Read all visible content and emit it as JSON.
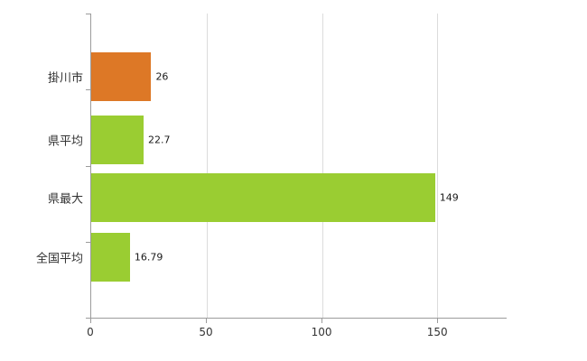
{
  "chart_data": {
    "type": "bar",
    "orientation": "horizontal",
    "title": "",
    "xlabel": "",
    "ylabel": "",
    "categories": [
      "掛川市",
      "県平均",
      "県最大",
      "全国平均"
    ],
    "values": [
      26,
      22.7,
      149,
      16.79
    ],
    "value_labels": [
      "26",
      "22.7",
      "149",
      "16.79"
    ],
    "bar_colors": [
      "#dd7826",
      "#9acd32",
      "#9acd32",
      "#9acd32"
    ],
    "xlim": [
      0,
      180
    ],
    "xticks": [
      0,
      50,
      100,
      150
    ],
    "xtick_labels": [
      "0",
      "50",
      "100",
      "150"
    ],
    "grid": "vertical-gridlines-on",
    "legend": "none"
  },
  "colors": {
    "highlight_bar": "#dd7826",
    "default_bar": "#9acd32",
    "gridline": "#dcdcdc",
    "axis": "#9b9b9b",
    "background": "#ffffff"
  }
}
